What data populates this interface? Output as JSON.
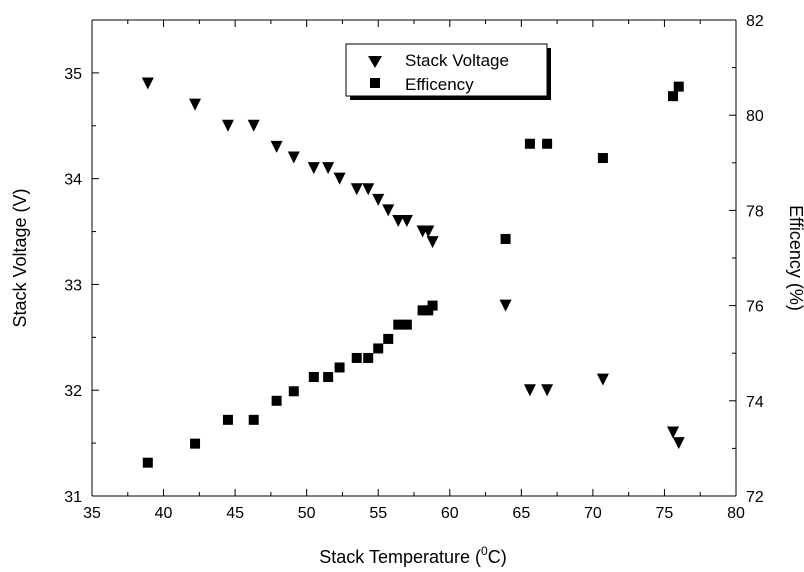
{
  "chart_data": {
    "type": "scatter",
    "title": "",
    "xlabel": "Stack Temperature (",
    "xlabel_sup": "0",
    "xlabel_tail": "C)",
    "ylabel_left": "Stack Voltage (V)",
    "ylabel_right": "Efficency (%)",
    "xlim": [
      35,
      80
    ],
    "ylim_left": [
      31,
      35.5
    ],
    "ylim_right": [
      72,
      82
    ],
    "x_ticks": [
      35,
      40,
      45,
      50,
      55,
      60,
      65,
      70,
      75,
      80
    ],
    "y_left_ticks": [
      31,
      32,
      33,
      34,
      35
    ],
    "y_right_ticks": [
      72,
      74,
      76,
      78,
      80,
      82
    ],
    "grid": false,
    "legend_position": "top-center",
    "series": [
      {
        "name": "Stack Voltage",
        "marker": "triangle-down",
        "axis": "left",
        "color": "#000000",
        "x": [
          38.9,
          42.2,
          44.5,
          46.3,
          47.9,
          49.1,
          50.5,
          51.5,
          52.3,
          53.5,
          54.3,
          55.0,
          55.7,
          56.4,
          57.0,
          58.1,
          58.5,
          58.8,
          63.9,
          65.6,
          66.8,
          70.7,
          75.6,
          76.0
        ],
        "y": [
          34.9,
          34.7,
          34.5,
          34.5,
          34.3,
          34.2,
          34.1,
          34.1,
          34.0,
          33.9,
          33.9,
          33.8,
          33.7,
          33.6,
          33.6,
          33.5,
          33.5,
          33.4,
          32.8,
          32.0,
          32.0,
          32.1,
          31.6,
          31.5
        ]
      },
      {
        "name": "Efficency",
        "marker": "square",
        "axis": "right",
        "color": "#000000",
        "x": [
          38.9,
          42.2,
          44.5,
          46.3,
          47.9,
          49.1,
          50.5,
          51.5,
          52.3,
          53.5,
          54.3,
          55.0,
          55.7,
          56.4,
          57.0,
          58.1,
          58.5,
          58.8,
          63.9,
          65.6,
          66.8,
          70.7,
          75.6,
          76.0
        ],
        "y": [
          72.7,
          73.1,
          73.6,
          73.6,
          74.0,
          74.2,
          74.5,
          74.5,
          74.7,
          74.9,
          74.9,
          75.1,
          75.3,
          75.6,
          75.6,
          75.9,
          75.9,
          76.0,
          77.4,
          79.4,
          79.4,
          79.1,
          80.4,
          80.6
        ]
      }
    ]
  }
}
